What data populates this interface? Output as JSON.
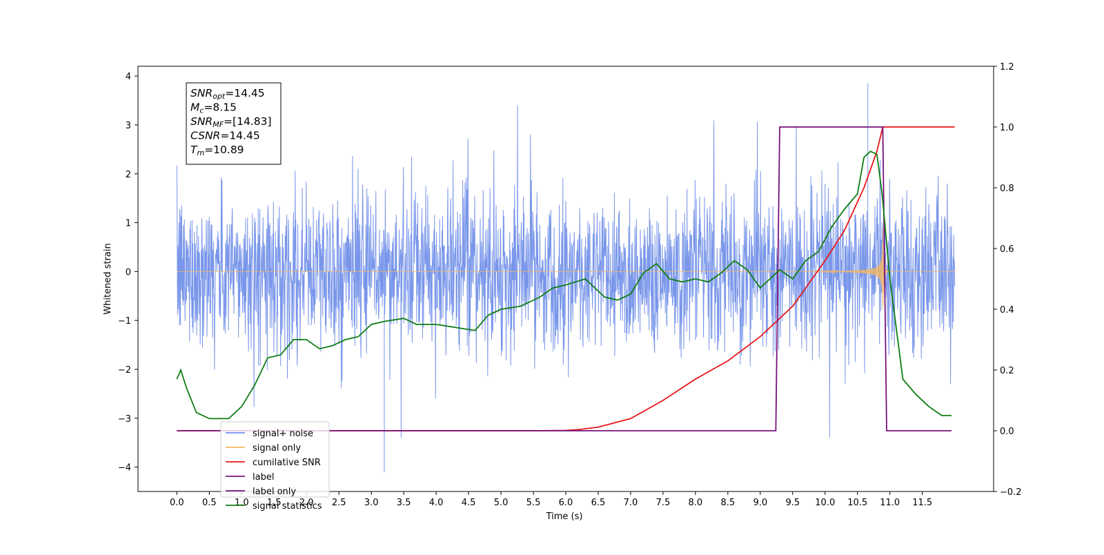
{
  "chart_data": {
    "type": "line",
    "xlabel": "Time (s)",
    "ylabel": "Whitened strain",
    "xlim": [
      -0.6,
      12.6
    ],
    "ylim": [
      -4.5,
      4.2
    ],
    "y2lim": [
      -0.2,
      1.2
    ],
    "x_ticks": [
      "0.0",
      "0.5",
      "1.0",
      "1.5",
      "2.0",
      "2.5",
      "3.0",
      "3.5",
      "4.0",
      "4.5",
      "5.0",
      "5.5",
      "6.0",
      "6.5",
      "7.0",
      "7.5",
      "8.0",
      "8.5",
      "9.0",
      "9.5",
      "10.0",
      "10.5",
      "11.0",
      "11.5"
    ],
    "y_ticks": [
      "4",
      "3",
      "2",
      "1",
      "0",
      "−1",
      "−2",
      "−3",
      "−4"
    ],
    "y2_ticks": [
      "1.2",
      "1.0",
      "0.8",
      "0.6",
      "0.4",
      "0.2",
      "0.0",
      "−0.2"
    ],
    "y_tick_values": [
      4,
      3,
      2,
      1,
      0,
      -1,
      -2,
      -3,
      -4
    ],
    "y2_tick_values": [
      1.2,
      1.0,
      0.8,
      0.6,
      0.4,
      0.2,
      0.0,
      -0.2
    ],
    "legend_position": "lower-left",
    "grid": false,
    "annotation": [
      {
        "name": "SNR",
        "sub": "opt",
        "value": "=14.45"
      },
      {
        "name": "M",
        "sub": "c",
        "value": "=8.15"
      },
      {
        "name": "SNR",
        "sub": "MF",
        "value": "=[14.83]"
      },
      {
        "name": "CSNR",
        "sub": "",
        "value": "=14.45"
      },
      {
        "name": "T",
        "sub": "m",
        "value": "=10.89"
      }
    ],
    "series": [
      {
        "name": "signal+ noise",
        "axis": "left",
        "color": "#6e8de8",
        "description_values": {
          "x_start": 0.0,
          "x_end": 12.0,
          "typical_band": [
            -1.6,
            1.6
          ],
          "max": 3.85,
          "min": -4.1
        }
      },
      {
        "name": "signal only",
        "axis": "left",
        "color": "#f5b860",
        "description_values": {
          "x_start": 0.0,
          "x_end": 12.0,
          "chirp_peak_time": 10.89,
          "peak_amplitude": 1.0
        }
      },
      {
        "name": "cumilative SNR",
        "axis": "right",
        "color": "#e8161a",
        "x": [
          0.0,
          5.5,
          6.0,
          6.2,
          6.5,
          7.0,
          7.5,
          8.0,
          8.5,
          9.0,
          9.5,
          10.0,
          10.3,
          10.6,
          10.8,
          10.89,
          12.0
        ],
        "y": [
          0.0,
          0.0,
          0.001,
          0.004,
          0.012,
          0.04,
          0.1,
          0.17,
          0.23,
          0.31,
          0.41,
          0.56,
          0.66,
          0.8,
          0.92,
          1.0,
          1.0
        ]
      },
      {
        "name": "label",
        "axis": "right",
        "color": "#76107a",
        "x": [
          0.0,
          9.24,
          9.3,
          10.89,
          10.95,
          11.95
        ],
        "y": [
          0.0,
          0.0,
          1.0,
          1.0,
          0.0,
          0.0
        ]
      },
      {
        "name": "label only",
        "axis": "right",
        "color": "#76107a",
        "x": [],
        "y": []
      },
      {
        "name": "signal statistics",
        "axis": "right",
        "color": "#0e7d12",
        "x": [
          0.0,
          0.06,
          0.15,
          0.3,
          0.5,
          0.8,
          1.0,
          1.2,
          1.4,
          1.6,
          1.8,
          2.0,
          2.2,
          2.4,
          2.6,
          2.8,
          3.0,
          3.2,
          3.5,
          3.7,
          4.0,
          4.3,
          4.6,
          4.8,
          5.0,
          5.3,
          5.6,
          5.8,
          6.0,
          6.3,
          6.6,
          6.8,
          7.0,
          7.2,
          7.4,
          7.6,
          7.8,
          8.0,
          8.2,
          8.4,
          8.6,
          8.8,
          9.0,
          9.3,
          9.5,
          9.7,
          9.9,
          10.1,
          10.3,
          10.5,
          10.6,
          10.7,
          10.8,
          10.88,
          11.0,
          11.2,
          11.4,
          11.6,
          11.8,
          11.95
        ],
        "y": [
          0.17,
          0.2,
          0.14,
          0.06,
          0.04,
          0.04,
          0.08,
          0.15,
          0.24,
          0.25,
          0.3,
          0.3,
          0.27,
          0.28,
          0.3,
          0.31,
          0.35,
          0.36,
          0.37,
          0.35,
          0.35,
          0.34,
          0.33,
          0.38,
          0.4,
          0.41,
          0.44,
          0.47,
          0.48,
          0.5,
          0.44,
          0.43,
          0.45,
          0.52,
          0.55,
          0.5,
          0.49,
          0.5,
          0.49,
          0.52,
          0.56,
          0.53,
          0.47,
          0.53,
          0.5,
          0.56,
          0.59,
          0.67,
          0.73,
          0.78,
          0.9,
          0.92,
          0.91,
          0.78,
          0.5,
          0.17,
          0.12,
          0.08,
          0.05,
          0.05
        ]
      }
    ]
  }
}
